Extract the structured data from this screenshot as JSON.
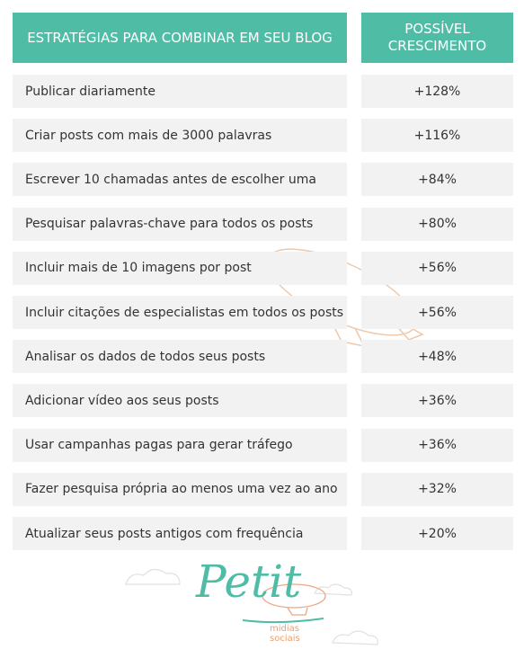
{
  "header": {
    "strategy": "ESTRATÉGIAS PARA COMBINAR EM SEU BLOG",
    "growth": [
      "POSSÍVEL",
      "CRESCIMENTO"
    ]
  },
  "table": {
    "rows": [
      [
        "Publicar diariamente",
        "+128%"
      ],
      [
        "Criar posts com mais de 3000 palavras",
        "+116%"
      ],
      [
        "Escrever 10 chamadas antes de escolher uma",
        "+84%"
      ],
      [
        "Pesquisar palavras-chave para todos os posts",
        "+80%"
      ],
      [
        "Incluir mais de 10 imagens por post",
        "+56%"
      ],
      [
        "Incluir citações de especialistas em todos os posts",
        "+56%"
      ],
      [
        "Analisar os dados de todos seus posts",
        "+48%"
      ],
      [
        "Adicionar vídeo aos seus posts",
        "+36%"
      ],
      [
        "Usar campanhas pagas para gerar tráfego",
        "+36%"
      ],
      [
        "Fazer pesquisa própria ao menos uma vez ao ano",
        "+32%"
      ],
      [
        "Atualizar seus posts antigos com frequência",
        "+20%"
      ]
    ]
  },
  "logo": {
    "name": "Petit",
    "tagline": [
      "midias",
      "sociais"
    ]
  }
}
